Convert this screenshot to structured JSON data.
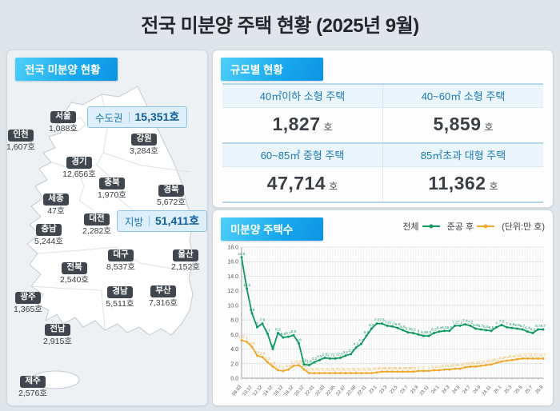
{
  "title": "전국 미분양 주택 현황 (2025년 9월)",
  "map_panel": {
    "header": "전국 미분양 현황",
    "summary": [
      {
        "label": "수도권",
        "value": "15,351호"
      },
      {
        "label": "지방",
        "value": "51,411호"
      }
    ],
    "regions": [
      {
        "name": "서울",
        "value": "1,088호"
      },
      {
        "name": "인천",
        "value": "1,607호"
      },
      {
        "name": "경기",
        "value": "12,656호"
      },
      {
        "name": "강원",
        "value": "3,284호"
      },
      {
        "name": "충북",
        "value": "1,970호"
      },
      {
        "name": "경북",
        "value": "5,672호"
      },
      {
        "name": "세종",
        "value": "47호"
      },
      {
        "name": "대전",
        "value": "2,282호"
      },
      {
        "name": "충남",
        "value": "5,244호"
      },
      {
        "name": "대구",
        "value": "8,537호"
      },
      {
        "name": "울산",
        "value": "2,152호"
      },
      {
        "name": "전북",
        "value": "2,540호"
      },
      {
        "name": "경남",
        "value": "5,511호"
      },
      {
        "name": "부산",
        "value": "7,316호"
      },
      {
        "name": "광주",
        "value": "1,365호"
      },
      {
        "name": "전남",
        "value": "2,915호"
      },
      {
        "name": "제주",
        "value": "2,576호"
      }
    ]
  },
  "size_panel": {
    "header": "규모별 현황",
    "items": [
      {
        "label": "40㎡이하 소형 주택",
        "value": "1,827",
        "unit": "호"
      },
      {
        "label": "40~60㎡ 소형 주택",
        "value": "5,859",
        "unit": "호"
      },
      {
        "label": "60~85㎡ 중형 주택",
        "value": "47,714",
        "unit": "호"
      },
      {
        "label": "85㎡초과 대형 주택",
        "value": "11,362",
        "unit": "호"
      }
    ]
  },
  "chart_panel": {
    "header": "미분양 주택수",
    "legend": [
      {
        "label": "전체",
        "color": "#10995f"
      },
      {
        "label": "준공 후",
        "color": "#f0a92c"
      }
    ],
    "unit_note": "(단위:만 호)"
  },
  "chart_data": {
    "type": "line",
    "title": "미분양 주택수",
    "unit": "만 호",
    "ylim": [
      0,
      18
    ],
    "ytick_step": 2,
    "grid": true,
    "legend_position": "top-right",
    "x": [
      "09.03",
      "09.12",
      "10.12",
      "11.12",
      "12.12",
      "13.12",
      "14.12",
      "15.12",
      "16.12",
      "17.12",
      "18.12",
      "19.12",
      "20.12",
      "21.12",
      "22.01",
      "22.02",
      "22.03",
      "22.04",
      "22.05",
      "22.06",
      "22.07",
      "22.08",
      "22.09",
      "22.10",
      "22.11",
      "22.12",
      "23.1",
      "23.2",
      "23.3",
      "23.4",
      "23.5",
      "23.6",
      "23.7",
      "23.8",
      "23.9",
      "23.10",
      "23.11",
      "23.12",
      "24.1",
      "24.2",
      "24.3",
      "24.4",
      "24.5",
      "24.6",
      "24.7",
      "24.8",
      "24.9",
      "24.10",
      "24.11",
      "24.12",
      "25.1",
      "25.2",
      "25.3",
      "25.4",
      "25.5",
      "25.6",
      "25.7",
      "25.8",
      "25.9"
    ],
    "x_tick_labels": [
      "09.03",
      "'10.12",
      "'12.12",
      "'14.12",
      "'16.12",
      "'18.12",
      "'20.12",
      "22.01",
      "22.03",
      "22.05",
      "22.07",
      "22.09",
      "22.11",
      "23.1",
      "23.3",
      "23.5",
      "23.7",
      "23.9",
      "23.11",
      "24.1",
      "24.3",
      "24.5",
      "24.7",
      "24.9",
      "24.11",
      "25.1",
      "25.3",
      "25.5",
      "25.7",
      "25.9"
    ],
    "series": [
      {
        "name": "전체",
        "color": "#10995f",
        "values": [
          16.6,
          12.3,
          8.9,
          7.0,
          7.5,
          6.1,
          4.0,
          6.2,
          5.6,
          5.7,
          5.9,
          4.8,
          1.9,
          1.8,
          2.2,
          2.5,
          2.8,
          2.7,
          2.7,
          2.8,
          3.1,
          3.3,
          4.2,
          4.7,
          5.8,
          6.8,
          7.5,
          7.5,
          7.2,
          7.1,
          6.9,
          6.6,
          6.3,
          6.2,
          6.0,
          5.8,
          5.8,
          6.2,
          6.4,
          6.5,
          6.5,
          7.2,
          7.2,
          7.4,
          7.2,
          6.8,
          6.7,
          6.6,
          6.5,
          7.0,
          7.3,
          7.0,
          6.9,
          6.8,
          6.7,
          6.4,
          6.2,
          6.7,
          6.7
        ]
      },
      {
        "name": "준공 후",
        "color": "#f0a92c",
        "values": [
          5.2,
          5.0,
          4.3,
          3.1,
          2.9,
          2.2,
          1.6,
          1.1,
          1.0,
          1.2,
          1.7,
          1.8,
          1.2,
          0.7,
          0.7,
          0.7,
          0.7,
          0.7,
          0.7,
          0.7,
          0.7,
          0.7,
          0.7,
          0.7,
          0.7,
          0.7,
          0.8,
          0.9,
          0.9,
          0.9,
          0.9,
          0.9,
          0.9,
          0.9,
          1.0,
          1.0,
          1.0,
          1.1,
          1.1,
          1.2,
          1.2,
          1.3,
          1.3,
          1.5,
          1.6,
          1.6,
          1.7,
          1.8,
          1.9,
          2.1,
          2.3,
          2.4,
          2.5,
          2.6,
          2.7,
          2.7,
          2.7,
          2.7,
          2.7
        ]
      }
    ]
  }
}
